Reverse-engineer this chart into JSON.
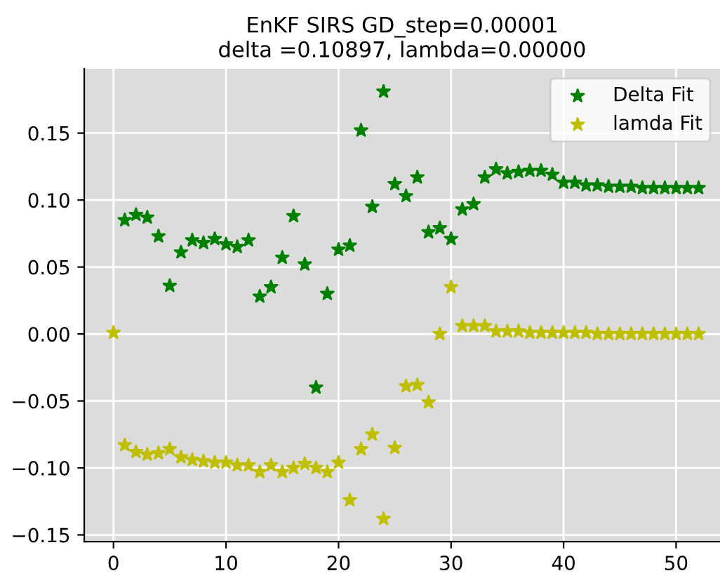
{
  "chart_data": {
    "type": "scatter",
    "title": "EnKF SIRS GD_step=0.00001\ndelta =0.10897, lambda=0.00000",
    "x": [
      0,
      1,
      2,
      3,
      4,
      5,
      6,
      7,
      8,
      9,
      10,
      11,
      12,
      13,
      14,
      15,
      16,
      17,
      18,
      19,
      20,
      21,
      22,
      23,
      24,
      25,
      26,
      27,
      28,
      29,
      30,
      31,
      32,
      33,
      34,
      35,
      36,
      37,
      38,
      39,
      40,
      41,
      42,
      43,
      44,
      45,
      46,
      47,
      48,
      49,
      50,
      51,
      52
    ],
    "series": [
      {
        "name": "Delta Fit",
        "color": "#008000",
        "values": [
          null,
          0.085,
          0.089,
          0.087,
          0.073,
          0.036,
          0.061,
          0.07,
          0.068,
          0.071,
          0.067,
          0.065,
          0.07,
          0.028,
          0.035,
          0.057,
          0.088,
          0.052,
          -0.04,
          0.03,
          0.063,
          0.066,
          0.152,
          0.095,
          0.181,
          0.112,
          0.103,
          0.117,
          0.076,
          0.079,
          0.071,
          0.093,
          0.097,
          0.117,
          0.123,
          0.12,
          0.121,
          0.122,
          0.122,
          0.119,
          0.113,
          0.113,
          0.111,
          0.111,
          0.11,
          0.11,
          0.11,
          0.109,
          0.109,
          0.109,
          0.109,
          0.109,
          0.109
        ]
      },
      {
        "name": "lamda Fit",
        "color": "#bfbf00",
        "values": [
          0.001,
          -0.083,
          -0.088,
          -0.09,
          -0.089,
          -0.086,
          -0.092,
          -0.094,
          -0.095,
          -0.096,
          -0.096,
          -0.098,
          -0.098,
          -0.103,
          -0.098,
          -0.103,
          -0.1,
          -0.097,
          -0.1,
          -0.103,
          -0.096,
          -0.124,
          -0.086,
          -0.075,
          -0.138,
          -0.085,
          -0.039,
          -0.038,
          -0.051,
          0.0,
          0.035,
          0.006,
          0.006,
          0.006,
          0.002,
          0.002,
          0.002,
          0.001,
          0.001,
          0.001,
          0.001,
          0.001,
          0.001,
          0.0,
          0.0,
          0.0,
          0.0,
          0.0,
          0.0,
          0.0,
          0.0,
          0.0,
          0.0
        ]
      }
    ],
    "xlim": [
      -2.6,
      53.9
    ],
    "xticks": [
      0,
      10,
      20,
      30,
      40,
      50
    ],
    "ylim": [
      -0.155,
      0.198
    ],
    "yticks": [
      {
        "value": -0.15,
        "label": "−0.15"
      },
      {
        "value": -0.1,
        "label": "−0.10"
      },
      {
        "value": -0.05,
        "label": "−0.05"
      },
      {
        "value": 0,
        "label": "0.00"
      },
      {
        "value": 0.05,
        "label": "0.05"
      },
      {
        "value": 0.1,
        "label": "0.10"
      },
      {
        "value": 0.15,
        "label": "0.15"
      }
    ],
    "grid": true,
    "legend": "top right",
    "marker": "star"
  }
}
